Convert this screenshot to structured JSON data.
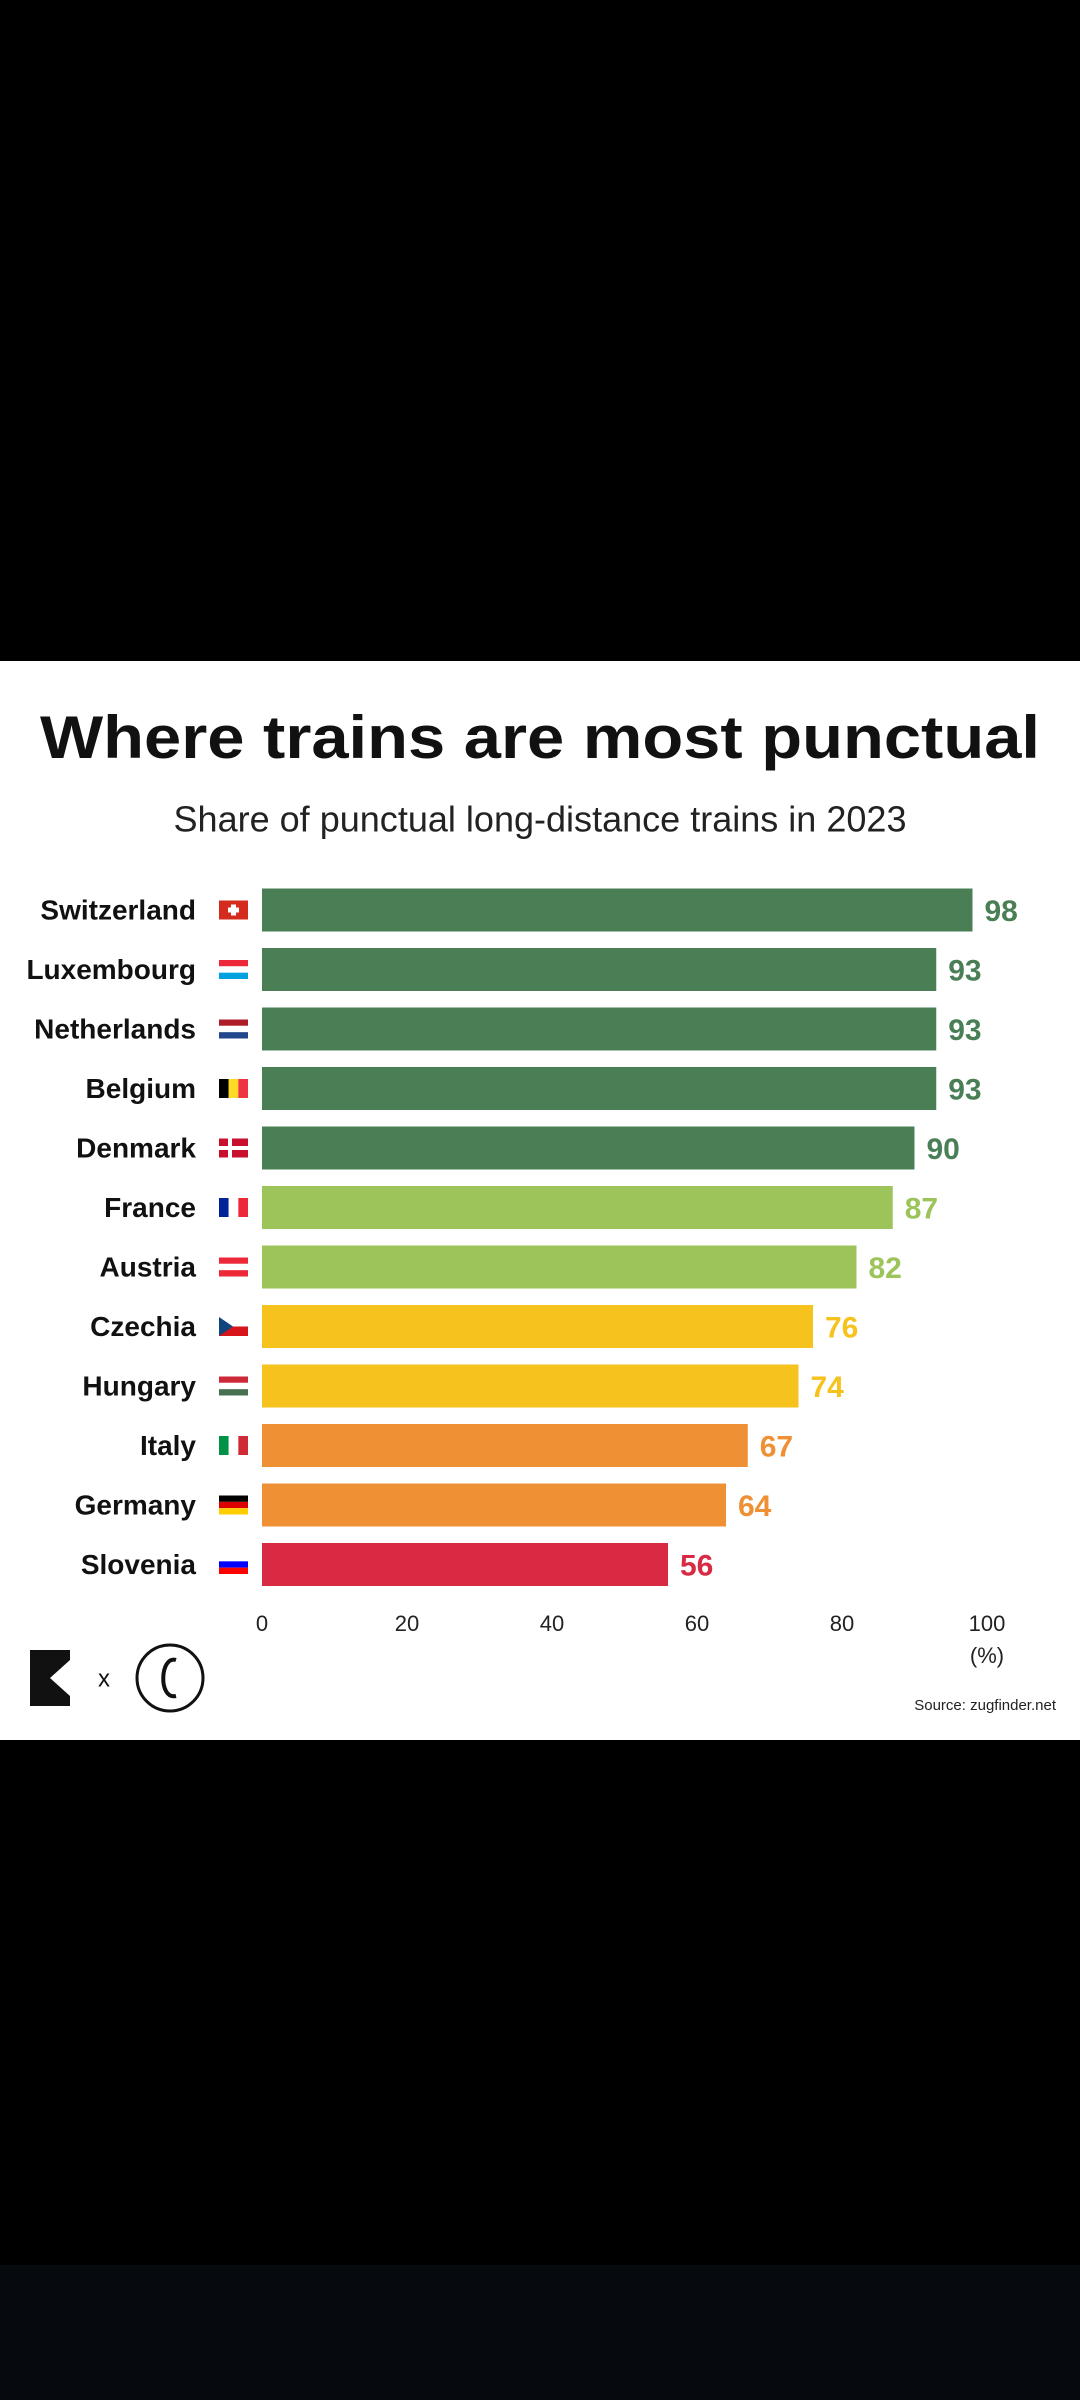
{
  "chart_data": {
    "type": "hbar",
    "title": "Where trains are most punctual",
    "subtitle": "Share of punctual long-distance trains in 2023",
    "categories": [
      "Switzerland",
      "Luxembourg",
      "Netherlands",
      "Belgium",
      "Denmark",
      "France",
      "Austria",
      "Czechia",
      "Hungary",
      "Italy",
      "Germany",
      "Slovenia"
    ],
    "values": [
      98,
      93,
      93,
      93,
      90,
      87,
      82,
      76,
      74,
      67,
      64,
      56
    ],
    "colors": [
      "#4a7f56",
      "#4a7f56",
      "#4a7f56",
      "#4a7f56",
      "#4a7f56",
      "#9cc45b",
      "#9cc45b",
      "#f6c21d",
      "#f6c21d",
      "#ef9035",
      "#ef9035",
      "#d92a43"
    ],
    "xlim": [
      0,
      100
    ],
    "xticks": [
      0,
      20,
      40,
      60,
      80,
      100
    ],
    "xlabel": "(%)",
    "grid": false,
    "source": "Source: zugfinder.net"
  },
  "branding": {
    "separator": "x"
  }
}
